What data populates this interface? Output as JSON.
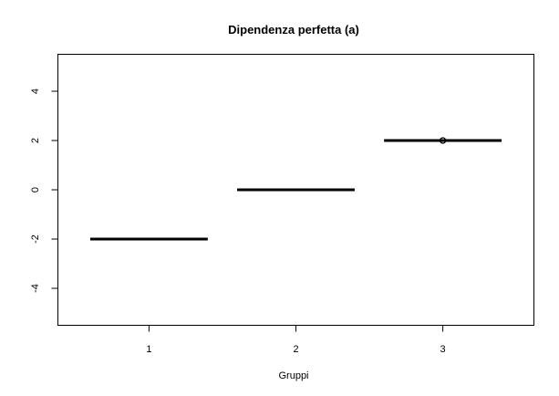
{
  "chart_data": {
    "type": "boxplot",
    "title": "Dipendenza perfetta (a)",
    "xlabel": "Gruppi",
    "ylabel": "",
    "categories": [
      "1",
      "2",
      "3"
    ],
    "x_ticks": [
      "1",
      "2",
      "3"
    ],
    "y_ticks": [
      -4,
      -2,
      0,
      2,
      4
    ],
    "ylim": [
      -5.5,
      5.5
    ],
    "grid": false,
    "legend": "none",
    "boxes": [
      {
        "group": "1",
        "min": -2,
        "q1": -2,
        "median": -2,
        "q3": -2,
        "max": -2,
        "outliers": []
      },
      {
        "group": "2",
        "min": 0,
        "q1": 0,
        "median": 0,
        "q3": 0,
        "max": 0,
        "outliers": []
      },
      {
        "group": "3",
        "min": 2,
        "q1": 2,
        "median": 2,
        "q3": 2,
        "max": 2,
        "outliers": [
          2
        ]
      }
    ],
    "colors": {
      "line": "#000000",
      "background": "#ffffff"
    }
  }
}
